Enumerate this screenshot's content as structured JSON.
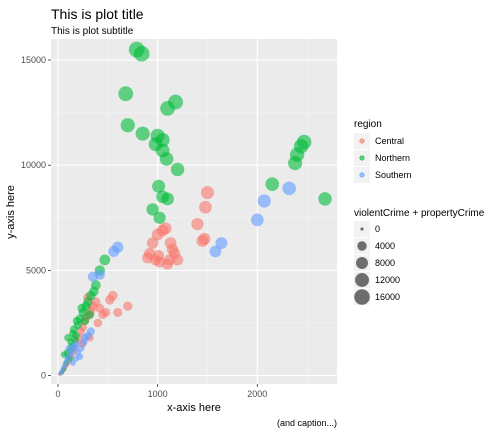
{
  "chart_data": {
    "type": "scatter",
    "title": "This is plot title",
    "subtitle": "This is plot subtitle",
    "xlabel": "x-axis here",
    "ylabel": "y-axis here",
    "caption": "(and caption...)",
    "xlim": [
      -70,
      2800
    ],
    "ylim": [
      -400,
      16000
    ],
    "x_ticks": [
      0,
      1000,
      2000
    ],
    "y_ticks": [
      0,
      5000,
      10000,
      15000
    ],
    "x_tick_labels": [
      "0",
      "1000",
      "2000"
    ],
    "y_tick_labels": [
      "0",
      "5000",
      "10000",
      "15000"
    ],
    "grid": true,
    "legend_placement": "right",
    "color_legend": {
      "title": "region",
      "entries": [
        {
          "label": "Central",
          "color": "#F8766D"
        },
        {
          "label": "Northern",
          "color": "#00BA38"
        },
        {
          "label": "Southern",
          "color": "#619CFF"
        }
      ]
    },
    "size_legend": {
      "title": "violentCrime + propertyCrime",
      "entries": [
        {
          "label": "0",
          "value": 0
        },
        {
          "label": "4000",
          "value": 4000
        },
        {
          "label": "8000",
          "value": 8000
        },
        {
          "label": "12000",
          "value": 12000
        },
        {
          "label": "16000",
          "value": 16000
        }
      ]
    },
    "series": [
      {
        "name": "Central",
        "color": "#F8766D",
        "points": [
          [
            20,
            80
          ],
          [
            35,
            150
          ],
          [
            50,
            250
          ],
          [
            60,
            320
          ],
          [
            75,
            450
          ],
          [
            90,
            550
          ],
          [
            110,
            700
          ],
          [
            130,
            900
          ],
          [
            150,
            1100
          ],
          [
            170,
            1300
          ],
          [
            190,
            1600
          ],
          [
            210,
            1800
          ],
          [
            230,
            2100
          ],
          [
            250,
            2300
          ],
          [
            270,
            2600
          ],
          [
            290,
            2800
          ],
          [
            310,
            2900
          ],
          [
            330,
            3100
          ],
          [
            350,
            3300
          ],
          [
            380,
            3500
          ],
          [
            300,
            3700
          ],
          [
            480,
            3000
          ],
          [
            420,
            3200
          ],
          [
            520,
            3600
          ],
          [
            550,
            3800
          ],
          [
            600,
            3000
          ],
          [
            700,
            3300
          ],
          [
            320,
            1800
          ],
          [
            400,
            2500
          ],
          [
            450,
            2900
          ],
          [
            250,
            1500
          ],
          [
            900,
            5600
          ],
          [
            920,
            5800
          ],
          [
            950,
            6300
          ],
          [
            1000,
            6700
          ],
          [
            1020,
            5400
          ],
          [
            1100,
            5300
          ],
          [
            1130,
            6300
          ],
          [
            1150,
            6000
          ],
          [
            1170,
            5800
          ],
          [
            1200,
            5500
          ],
          [
            980,
            5500
          ],
          [
            1050,
            6900
          ],
          [
            1400,
            7200
          ],
          [
            1450,
            6400
          ],
          [
            1480,
            8000
          ],
          [
            1500,
            8700
          ],
          [
            1470,
            6500
          ],
          [
            1080,
            7000
          ],
          [
            1120,
            5500
          ],
          [
            1010,
            5700
          ]
        ]
      },
      {
        "name": "Northern",
        "color": "#00BA38",
        "points": [
          [
            40,
            150
          ],
          [
            60,
            300
          ],
          [
            80,
            600
          ],
          [
            100,
            900
          ],
          [
            120,
            1200
          ],
          [
            130,
            1600
          ],
          [
            150,
            2000
          ],
          [
            160,
            2200
          ],
          [
            180,
            1900
          ],
          [
            200,
            2400
          ],
          [
            220,
            2700
          ],
          [
            250,
            3000
          ],
          [
            280,
            3300
          ],
          [
            300,
            3500
          ],
          [
            330,
            3800
          ],
          [
            360,
            4000
          ],
          [
            380,
            4300
          ],
          [
            420,
            5000
          ],
          [
            470,
            5500
          ],
          [
            100,
            1800
          ],
          [
            140,
            1400
          ],
          [
            190,
            2600
          ],
          [
            240,
            3200
          ],
          [
            320,
            2900
          ],
          [
            270,
            2600
          ],
          [
            170,
            1700
          ],
          [
            60,
            1000
          ],
          [
            90,
            1100
          ],
          [
            120,
            800
          ],
          [
            700,
            11900
          ],
          [
            850,
            11500
          ],
          [
            980,
            11000
          ],
          [
            1000,
            11400
          ],
          [
            1050,
            11200
          ],
          [
            1050,
            10700
          ],
          [
            1090,
            10300
          ],
          [
            1100,
            12700
          ],
          [
            1180,
            13000
          ],
          [
            1200,
            9800
          ],
          [
            1010,
            9000
          ],
          [
            1050,
            8500
          ],
          [
            950,
            7900
          ],
          [
            1100,
            8400
          ],
          [
            680,
            13400
          ],
          [
            790,
            15500
          ],
          [
            840,
            15300
          ],
          [
            2150,
            9100
          ],
          [
            2380,
            10100
          ],
          [
            2400,
            10500
          ],
          [
            2440,
            10900
          ],
          [
            2470,
            11100
          ],
          [
            2680,
            8400
          ],
          [
            1020,
            7500
          ]
        ]
      },
      {
        "name": "Southern",
        "color": "#619CFF",
        "points": [
          [
            25,
            100
          ],
          [
            40,
            200
          ],
          [
            55,
            350
          ],
          [
            70,
            500
          ],
          [
            90,
            700
          ],
          [
            100,
            850
          ],
          [
            120,
            1000
          ],
          [
            140,
            1200
          ],
          [
            160,
            1350
          ],
          [
            180,
            1500
          ],
          [
            200,
            1100
          ],
          [
            230,
            1300
          ],
          [
            260,
            1600
          ],
          [
            300,
            1900
          ],
          [
            330,
            2100
          ],
          [
            220,
            900
          ],
          [
            270,
            1800
          ],
          [
            150,
            600
          ],
          [
            110,
            1300
          ],
          [
            350,
            4700
          ],
          [
            420,
            4800
          ],
          [
            560,
            5900
          ],
          [
            600,
            6100
          ],
          [
            2000,
            7400
          ],
          [
            2070,
            8300
          ],
          [
            2320,
            8900
          ],
          [
            1580,
            5900
          ],
          [
            1640,
            6300
          ],
          [
            180,
            800
          ]
        ]
      }
    ]
  }
}
